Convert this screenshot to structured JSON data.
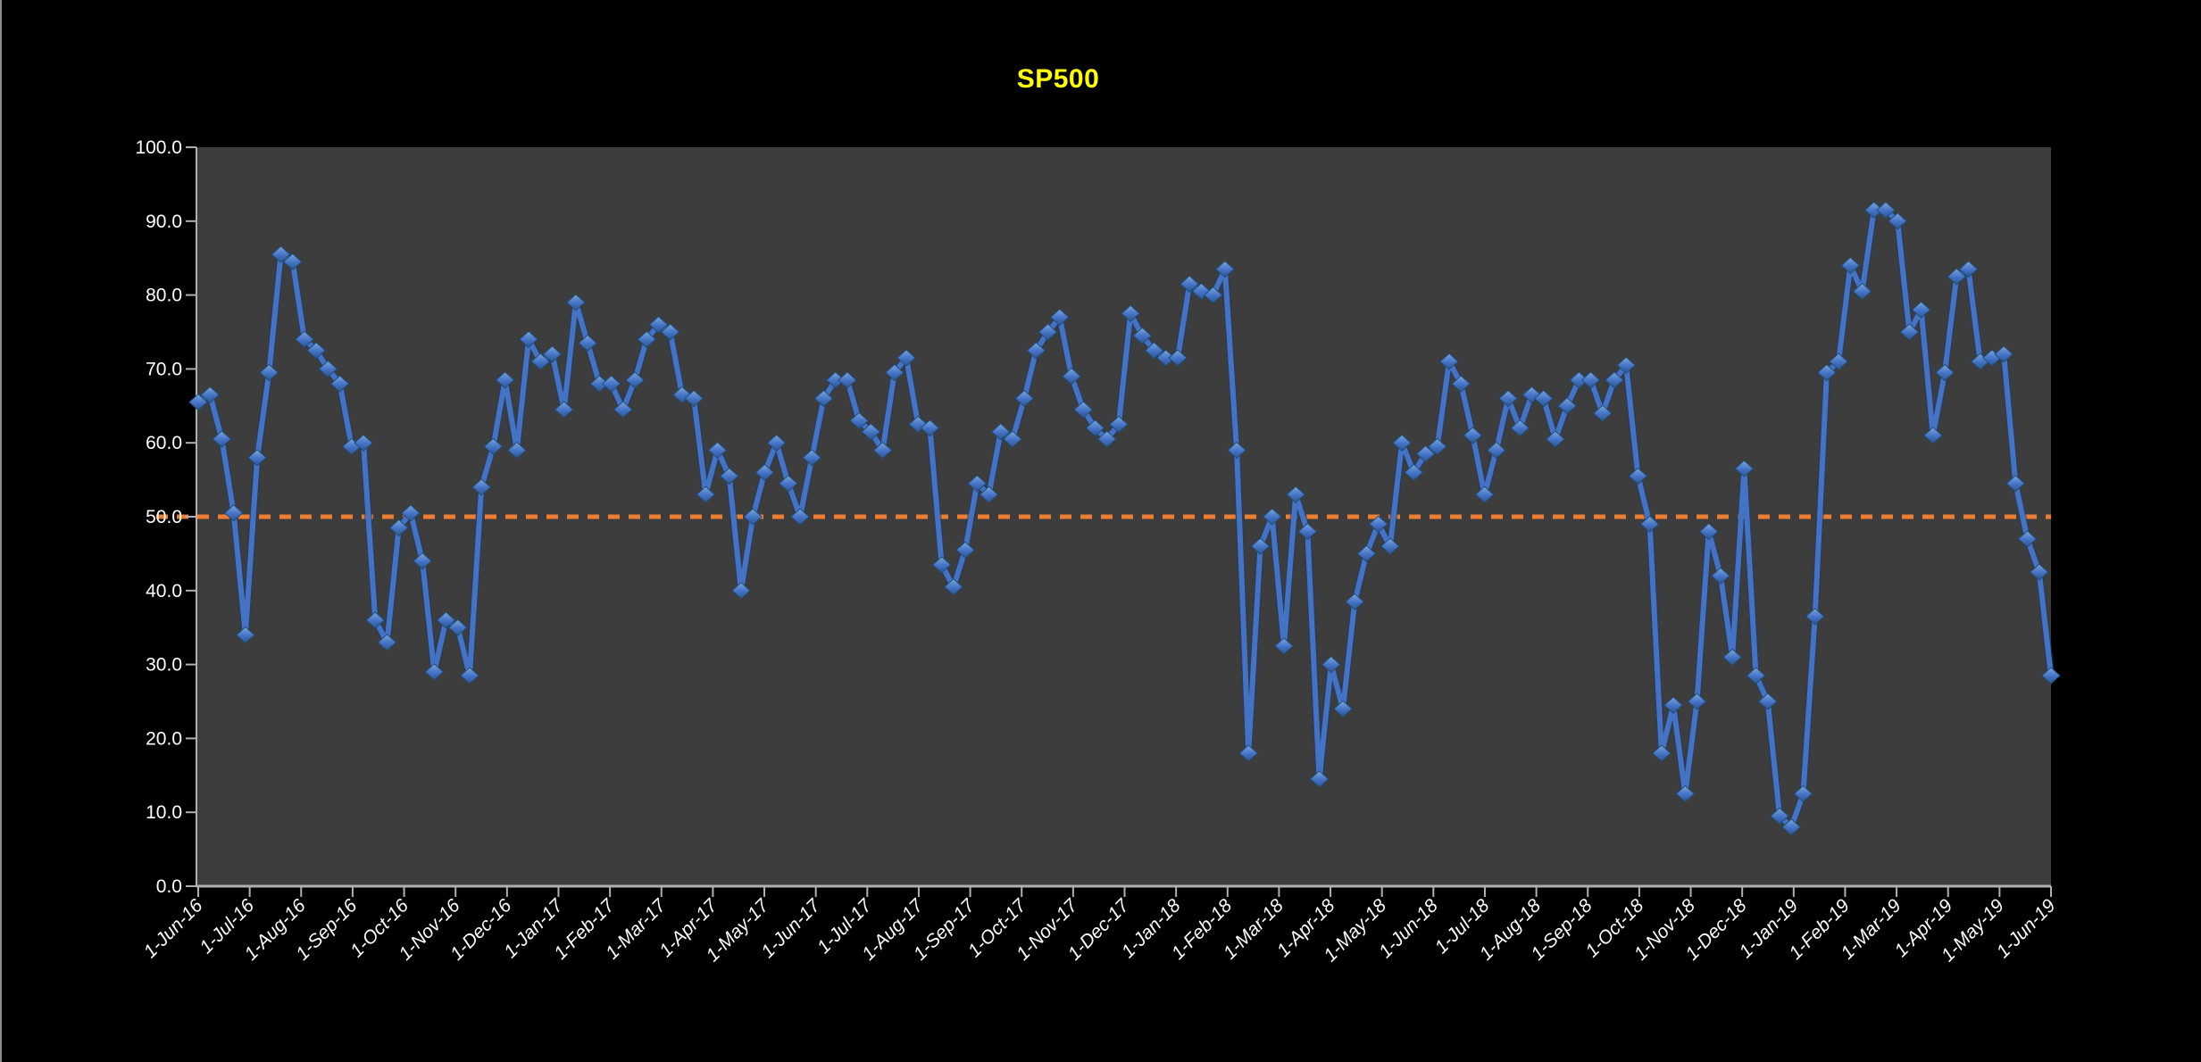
{
  "chart_data": {
    "type": "line",
    "title": "SP500",
    "title_color": "#FFFF00",
    "page_bg": "#000000",
    "plot_bg": "#3d3d3d",
    "axis_color": "#b0b0b0",
    "tick_label_color": "#ffffff",
    "legend": "none",
    "grid": "off",
    "x_axis": {
      "label_rotation": -45,
      "tick_labels": [
        "1-Jun-16",
        "1-Jul-16",
        "1-Aug-16",
        "1-Sep-16",
        "1-Oct-16",
        "1-Nov-16",
        "1-Dec-16",
        "1-Jan-17",
        "1-Feb-17",
        "1-Mar-17",
        "1-Apr-17",
        "1-May-17",
        "1-Jun-17",
        "1-Jul-17",
        "1-Aug-17",
        "1-Sep-17",
        "1-Oct-17",
        "1-Nov-17",
        "1-Dec-17",
        "1-Jan-18",
        "1-Feb-18",
        "1-Mar-18",
        "1-Apr-18",
        "1-May-18",
        "1-Jun-18",
        "1-Jul-18",
        "1-Aug-18",
        "1-Sep-18",
        "1-Oct-18",
        "1-Nov-18",
        "1-Dec-18",
        "1-Jan-19",
        "1-Feb-19",
        "1-Mar-19",
        "1-Apr-19",
        "1-May-19",
        "1-Jun-19"
      ]
    },
    "y_axis": {
      "min": 0,
      "max": 100,
      "step": 10,
      "tick_labels": [
        "0.0",
        "10.0",
        "20.0",
        "30.0",
        "40.0",
        "50.0",
        "60.0",
        "70.0",
        "80.0",
        "90.0",
        "100.0"
      ]
    },
    "reference_line": {
      "value": 50,
      "color": "#ED7D31",
      "style": "dotted"
    },
    "series": [
      {
        "name": "SP500",
        "color": "#4472C4",
        "marker": "diamond",
        "frequency": "weekly",
        "start_label": "1-Jun-16",
        "end_label": "1-Jun-19",
        "values": [
          65.5,
          66.5,
          60.5,
          50.5,
          34,
          58,
          69.5,
          85.5,
          84.5,
          74,
          72.5,
          70,
          68,
          59.5,
          60,
          36,
          33,
          48.5,
          50.5,
          44,
          29,
          36,
          35,
          28.5,
          54,
          59.5,
          68.5,
          59,
          74,
          71,
          72,
          64.5,
          79,
          73.5,
          68,
          68,
          64.5,
          68.5,
          74,
          76,
          75,
          66.5,
          66,
          53,
          59,
          55.5,
          40,
          50,
          56,
          60,
          54.5,
          50,
          58,
          66,
          68.5,
          68.5,
          63,
          61.5,
          59,
          69.5,
          71.5,
          62.5,
          62,
          43.5,
          40.5,
          45.5,
          54.5,
          53,
          61.5,
          60.5,
          66,
          72.5,
          75,
          77,
          69,
          64.5,
          62,
          60.5,
          62.5,
          77.5,
          74.5,
          72.5,
          71.5,
          71.5,
          81.5,
          80.5,
          80,
          83.5,
          59,
          18,
          46,
          50,
          32.5,
          53,
          48,
          14.5,
          30,
          24,
          38.5,
          45,
          49,
          46,
          60,
          56,
          58.5,
          59.5,
          71,
          68,
          61,
          53,
          59,
          66,
          62,
          66.5,
          66,
          60.5,
          65,
          68.5,
          68.5,
          64,
          68.5,
          70.5,
          55.5,
          49,
          18,
          24.5,
          12.5,
          25,
          48,
          42,
          31,
          56.5,
          28.5,
          25,
          9.5,
          8,
          12.5,
          36.5,
          69.5,
          71,
          84,
          80.5,
          91.5,
          91.5,
          90,
          75,
          78,
          61,
          69.5,
          82.5,
          83.5,
          71,
          71.5,
          72,
          54.5,
          47,
          42.5,
          28.5
        ]
      }
    ]
  }
}
